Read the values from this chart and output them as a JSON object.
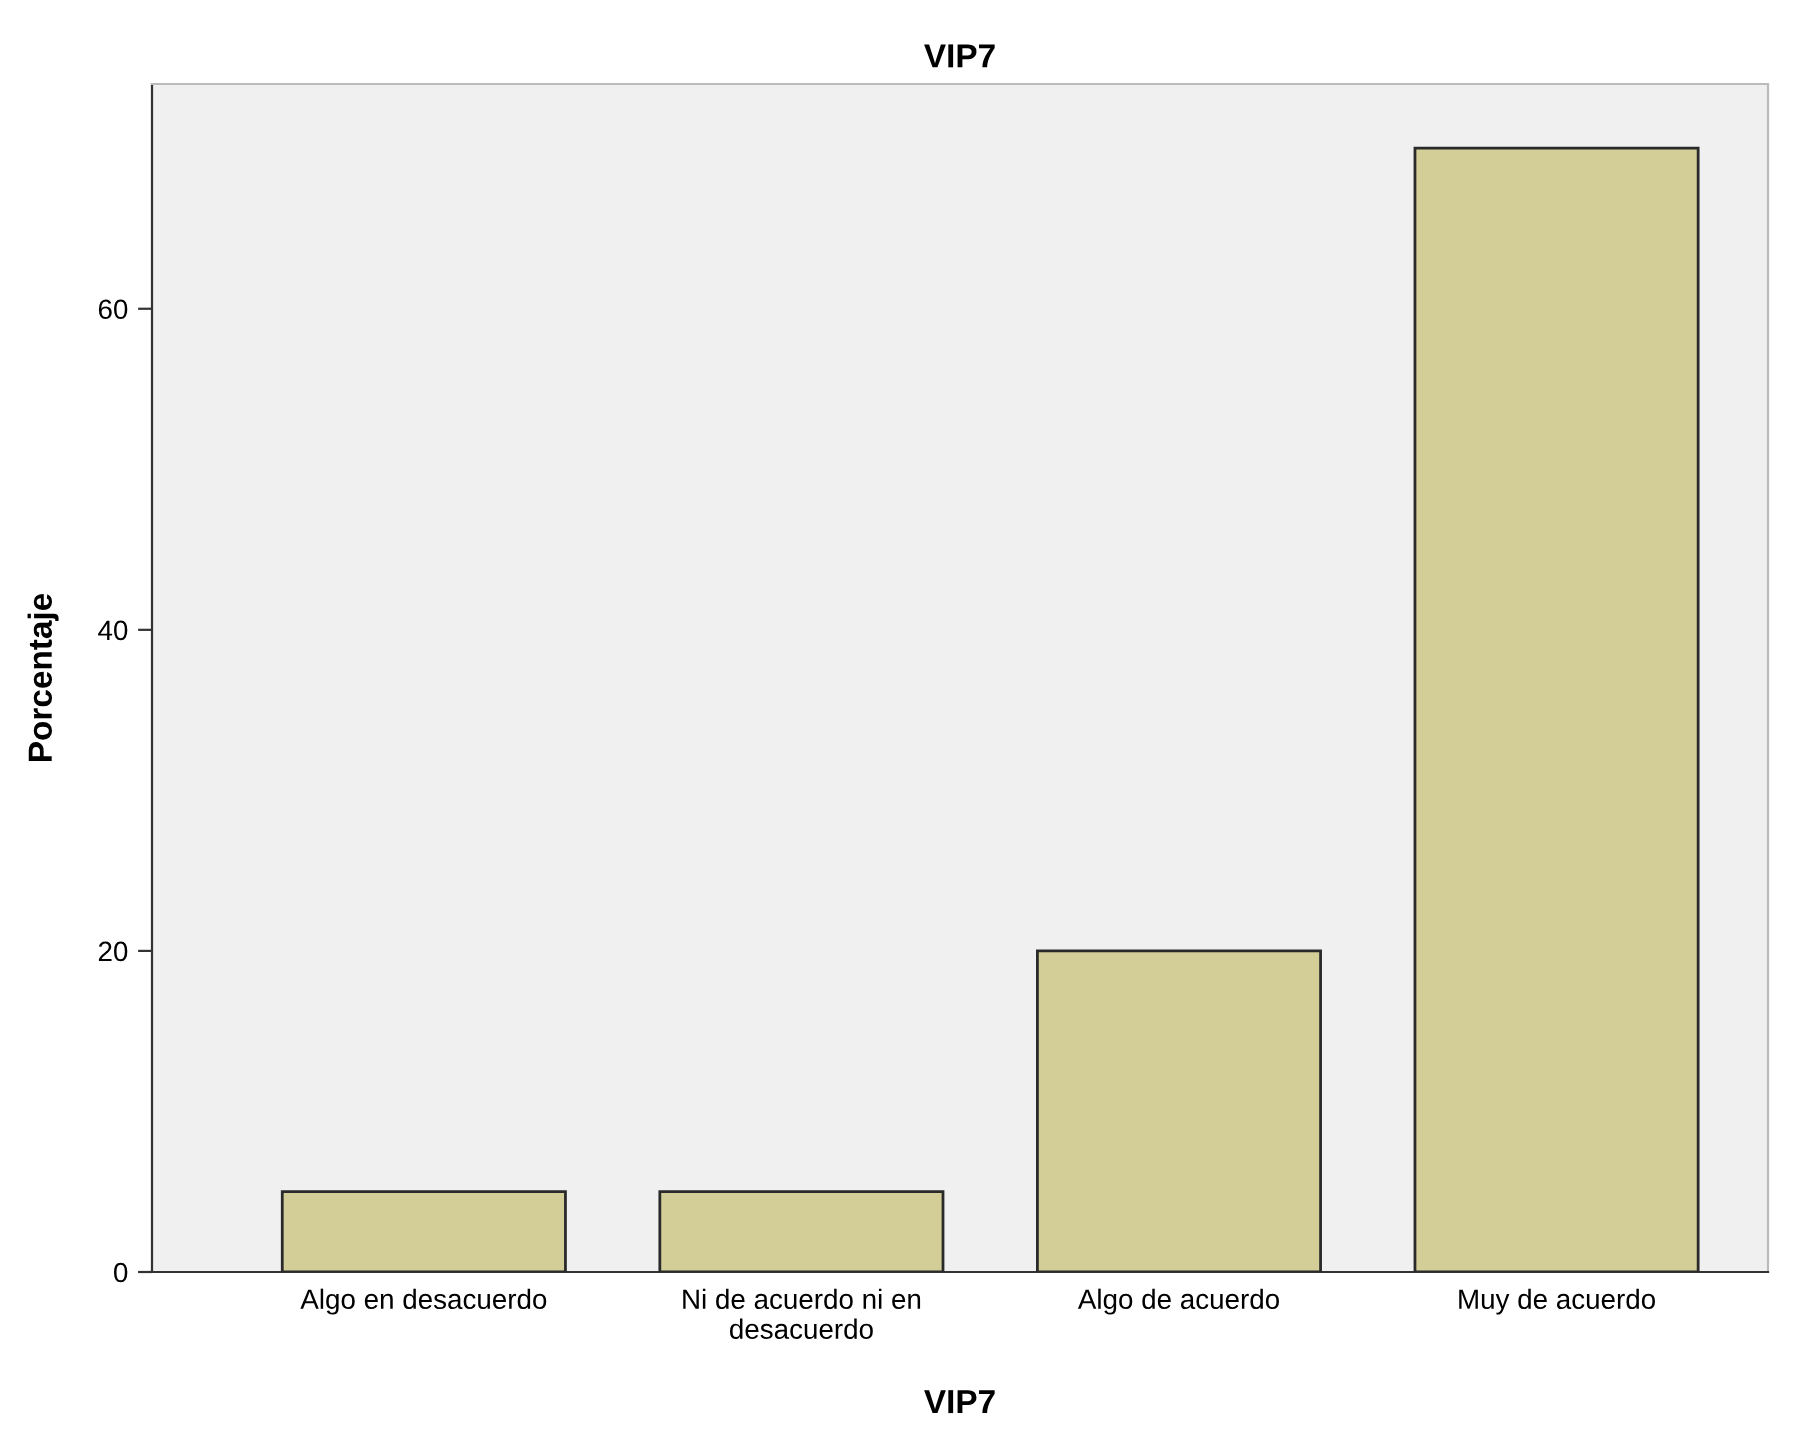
{
  "chart_data": {
    "type": "bar",
    "title": "VIP7",
    "xlabel": "VIP7",
    "ylabel": "Porcentaje",
    "categories": [
      "Algo en desacuerdo",
      "Ni de acuerdo ni en\ndesacuerdo",
      "Algo de acuerdo",
      "Muy de acuerdo"
    ],
    "values": [
      5,
      5,
      20,
      70
    ],
    "color": "#d3ce97",
    "ylim": [
      0,
      74
    ],
    "yticks": [
      0,
      20,
      40,
      60
    ],
    "grid": false
  }
}
